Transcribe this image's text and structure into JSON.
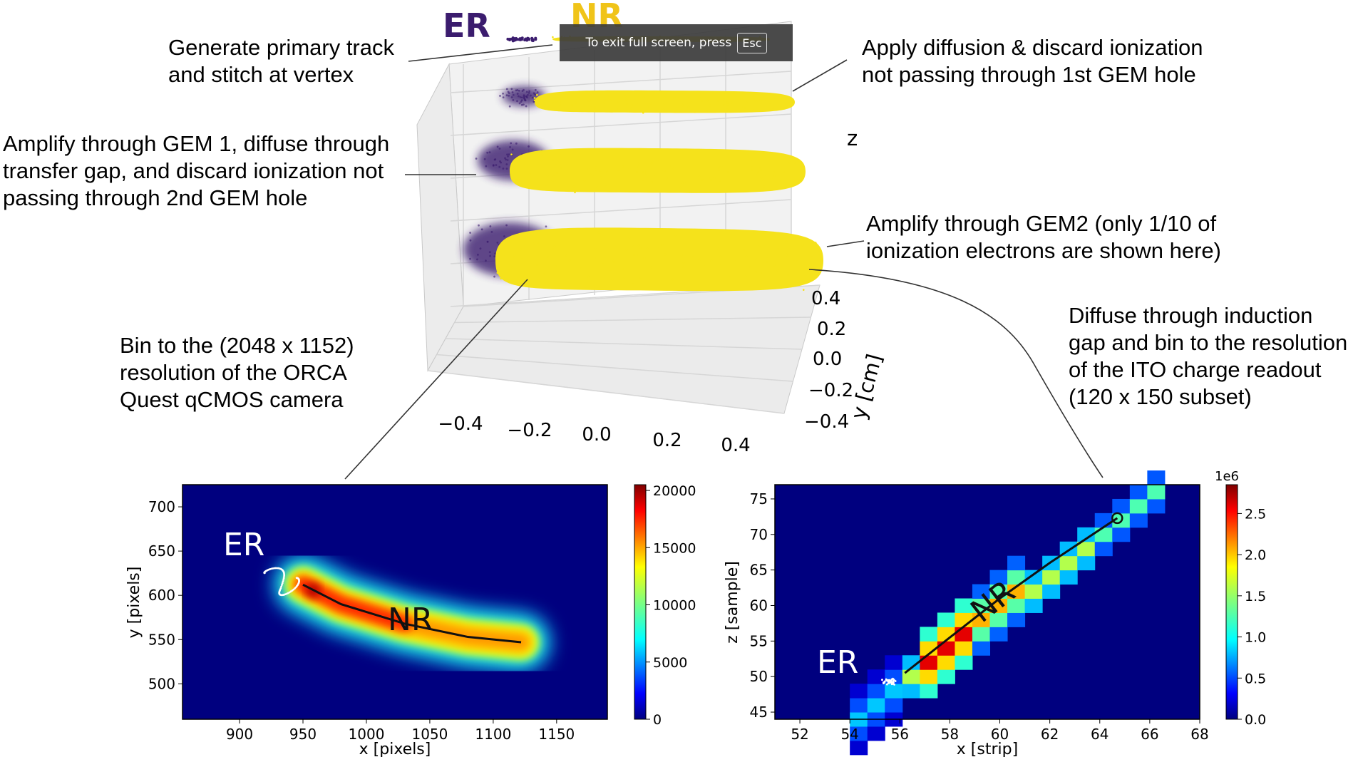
{
  "chart_data": [
    {
      "type": "scatter",
      "kind": "3d-point-cloud",
      "title": "",
      "labels": {
        "er": "ER",
        "nr": "NR"
      },
      "ylabel": "y [cm]",
      "zlabel": "z",
      "x_ticks": [
        "−0.4",
        "−0.2",
        "0.0",
        "0.2",
        "0.4"
      ],
      "y_ticks": [
        "0.4",
        "0.2",
        "0.0",
        "−0.2",
        "−0.4"
      ],
      "colors": {
        "er": "#3b1c6e",
        "nr": "#f5e21b"
      },
      "layers": [
        "primary track",
        "diffused",
        "GEM 1",
        "GEM 2"
      ]
    },
    {
      "type": "heatmap",
      "title": "",
      "xlabel": "x [pixels]",
      "ylabel": "y [pixels]",
      "xlim": [
        855,
        1190
      ],
      "ylim": [
        460,
        725
      ],
      "x_ticks": [
        "900",
        "950",
        "1000",
        "1050",
        "1100",
        "1150"
      ],
      "y_ticks": [
        "700",
        "650",
        "600",
        "550",
        "500"
      ],
      "colorbar_ticks": [
        "20000",
        "15000",
        "10000",
        "5000",
        "0"
      ],
      "colorbar_range": [
        0,
        20500
      ],
      "labels": {
        "er": "ER",
        "nr": "NR"
      },
      "track": [
        [
          950,
          612
        ],
        [
          980,
          590
        ],
        [
          1030,
          568
        ],
        [
          1080,
          553
        ],
        [
          1122,
          547
        ]
      ]
    },
    {
      "type": "heatmap",
      "title": "",
      "xlabel": "x [strip]",
      "ylabel": "z [sample]",
      "xlim": [
        51,
        68
      ],
      "ylim": [
        44,
        77
      ],
      "x_ticks": [
        "52",
        "54",
        "56",
        "58",
        "60",
        "62",
        "64",
        "66",
        "68"
      ],
      "y_ticks": [
        "75",
        "70",
        "65",
        "60",
        "55",
        "50",
        "45"
      ],
      "colorbar_ticks": [
        "2.5",
        "2.0",
        "1.5",
        "1.0",
        "0.5",
        "0.0"
      ],
      "colorbar_range": [
        0,
        2.85
      ],
      "colorbar_scale_label": "1e6",
      "labels": {
        "er": "ER",
        "nr": "NR"
      },
      "track": [
        [
          56.2,
          50.5
        ],
        [
          58.0,
          55.5
        ],
        [
          60.0,
          61.0
        ],
        [
          62.0,
          66.0
        ],
        [
          64.7,
          72.3
        ]
      ]
    }
  ],
  "annotations": {
    "primary": "Generate primary track\nand stitch at vertex",
    "diffusion": "Apply diffusion & discard ionization\nnot passing through 1st GEM hole",
    "gem1": "Amplify through GEM 1, diffuse through\ntransfer gap, and discard ionization not\npassing through 2nd GEM hole",
    "gem2": "Amplify through GEM2 (only 1/10 of\nionization electrons are shown here)",
    "camera": "Bin to the (2048 x 1152)\nresolution of the ORCA\nQuest qCMOS camera",
    "ito": "Diffuse through induction\ngap and bin to the resolution\nof the ITO charge readout\n(120 x 150 subset)"
  },
  "fullscreen_toast": {
    "text": "To exit full screen, press",
    "key": "Esc"
  }
}
